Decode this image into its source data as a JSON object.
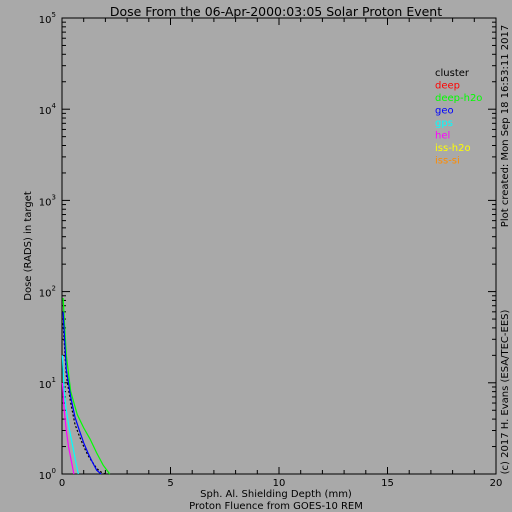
{
  "chart_data": {
    "type": "line",
    "title": "Dose From the 06-Apr-2000:03:05 Solar Proton Event",
    "xlabel": "Sph. Al. Shielding Depth (mm)",
    "subtitle": "Proton Fluence from GOES-10 REM",
    "ylabel": "Dose (RADS) in target",
    "xlim": [
      0,
      20
    ],
    "ylim": [
      1,
      100000
    ],
    "yscale": "log",
    "x_ticks": [
      0,
      5,
      10,
      15,
      20
    ],
    "x_tick_labels": [
      "0",
      "5",
      "10",
      "15",
      "20"
    ],
    "y_ticks": [
      1,
      10,
      100,
      1000,
      10000,
      100000
    ],
    "y_tick_labels": [
      {
        "base": "10",
        "exp": "0"
      },
      {
        "base": "10",
        "exp": "1"
      },
      {
        "base": "10",
        "exp": "2"
      },
      {
        "base": "10",
        "exp": "3"
      },
      {
        "base": "10",
        "exp": "4"
      },
      {
        "base": "10",
        "exp": "5"
      }
    ],
    "legend_position": "top-right",
    "side_note": "Plot created: Mon Sep 18 16:53:11 2017",
    "credit": "(c) 2017 H. Evans (ESA/TEC-EES)",
    "series": [
      {
        "name": "cluster",
        "color": "#000000",
        "dash": "dotted",
        "x": [
          0.05,
          0.2,
          0.4,
          0.6,
          0.8,
          1.0,
          1.2,
          1.4,
          1.6,
          1.8,
          2.0
        ],
        "y": [
          45,
          12,
          6,
          3.5,
          2.6,
          2.0,
          1.6,
          1.35,
          1.15,
          1.05,
          1.0
        ]
      },
      {
        "name": "deep",
        "color": "#ff0000",
        "dash": "solid",
        "x": [],
        "y": []
      },
      {
        "name": "deep-h2o",
        "color": "#00ff00",
        "dash": "solid",
        "x": [
          0.05,
          0.2,
          0.4,
          0.7,
          1.0,
          1.3,
          1.6,
          1.9,
          2.2
        ],
        "y": [
          85,
          20,
          8,
          4.5,
          3.2,
          2.4,
          1.7,
          1.25,
          1.0
        ]
      },
      {
        "name": "geo",
        "color": "#0000ff",
        "dash": "solid",
        "x": [
          0.05,
          0.2,
          0.4,
          0.6,
          0.8,
          1.0,
          1.2,
          1.4,
          1.6,
          1.8
        ],
        "y": [
          60,
          14,
          7,
          4.2,
          3.0,
          2.2,
          1.7,
          1.35,
          1.1,
          1.0
        ]
      },
      {
        "name": "gps",
        "color": "#00ffff",
        "dash": "solid",
        "x": [
          0.02,
          0.1,
          0.2,
          0.35,
          0.5,
          0.6,
          0.7,
          0.75
        ],
        "y": [
          20,
          8,
          5,
          3,
          2,
          1.5,
          1.15,
          1.0
        ]
      },
      {
        "name": "hel",
        "color": "#ff00ff",
        "dash": "solid",
        "x": [
          0.02,
          0.1,
          0.2,
          0.3,
          0.4,
          0.5,
          0.55
        ],
        "y": [
          10,
          5,
          3,
          2,
          1.5,
          1.15,
          1.0
        ]
      },
      {
        "name": "iss-h2o",
        "color": "#ffff00",
        "dash": "solid",
        "x": [],
        "y": []
      },
      {
        "name": "iss-si",
        "color": "#ff8c00",
        "dash": "solid",
        "x": [],
        "y": []
      }
    ]
  }
}
